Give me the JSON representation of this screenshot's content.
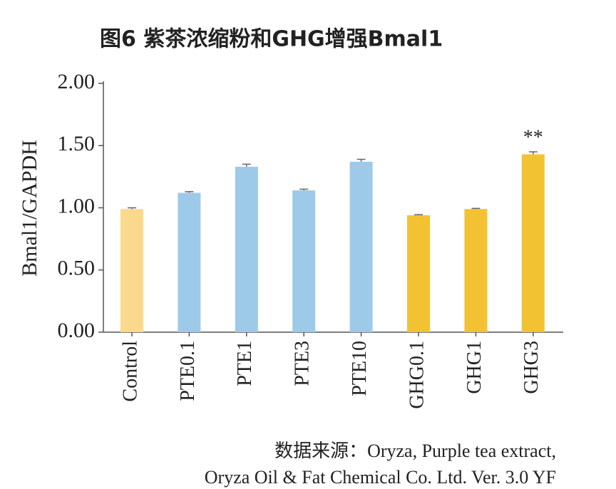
{
  "chart_data": {
    "type": "bar",
    "title": "图6 紫茶浓缩粉和GHG增强Bmal1",
    "y_label": "Bmal1/GAPDH",
    "categories": [
      "Control",
      "PTE0.1",
      "PTE1",
      "PTE3",
      "PTE10",
      "GHG0.1",
      "GHG1",
      "GHG3"
    ],
    "values": [
      0.99,
      1.12,
      1.33,
      1.14,
      1.37,
      0.94,
      0.99,
      1.43
    ],
    "errors": [
      0.01,
      0.01,
      0.02,
      0.01,
      0.02,
      0.005,
      0.005,
      0.02
    ],
    "colors": [
      "#fbd98c",
      "#9dcae8",
      "#9dcae8",
      "#9dcae8",
      "#9dcae8",
      "#f2c233",
      "#f2c233",
      "#f2c233"
    ],
    "ylim": [
      0,
      2
    ],
    "yticks": [
      {
        "value": 0,
        "label": "0.00"
      },
      {
        "value": 0.5,
        "label": "0.50"
      },
      {
        "value": 1,
        "label": "1.00"
      },
      {
        "value": 1.5,
        "label": "1.50"
      },
      {
        "value": 2,
        "label": "2.00"
      }
    ],
    "annotations": [
      {
        "text": "**",
        "category": "GHG3"
      }
    ],
    "source": [
      "数据来源：Oryza, Purple tea extract,",
      "Oryza Oil & Fat Chemical Co. Ltd. Ver. 3.0 YF"
    ]
  }
}
